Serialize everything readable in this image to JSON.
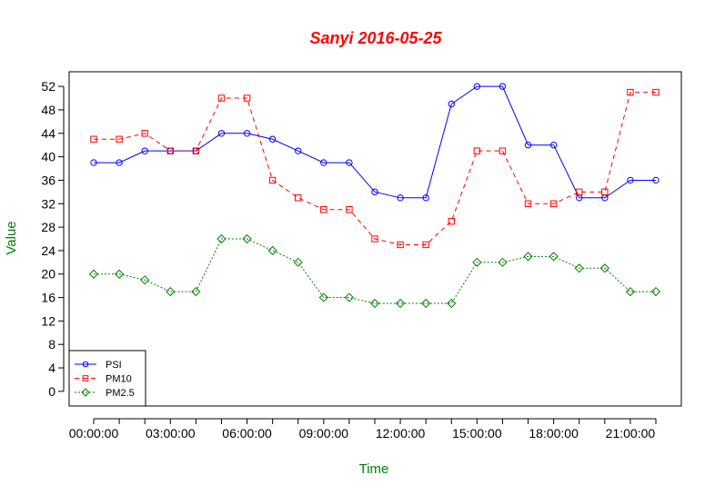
{
  "chart_data": {
    "type": "line",
    "title": "Sanyi 2016-05-25",
    "xlabel": "Time",
    "ylabel": "Value",
    "title_color": "#ff0000",
    "axis_label_color": "#008000",
    "ylim": [
      -2.5,
      54.5
    ],
    "yticks": [
      0,
      4,
      8,
      12,
      16,
      20,
      24,
      28,
      32,
      36,
      40,
      44,
      48,
      52
    ],
    "x_hours": [
      0,
      1,
      2,
      3,
      4,
      5,
      6,
      7,
      8,
      9,
      10,
      11,
      12,
      13,
      14,
      15,
      16,
      17,
      18,
      19,
      20,
      21,
      22
    ],
    "xticks": [
      {
        "hour": 0,
        "label": "00:00:00"
      },
      {
        "hour": 3,
        "label": "03:00:00"
      },
      {
        "hour": 6,
        "label": "06:00:00"
      },
      {
        "hour": 9,
        "label": "09:00:00"
      },
      {
        "hour": 12,
        "label": "12:00:00"
      },
      {
        "hour": 15,
        "label": "15:00:00"
      },
      {
        "hour": 18,
        "label": "18:00:00"
      },
      {
        "hour": 21,
        "label": "21:00:00"
      }
    ],
    "legend_position": "bottom-left",
    "series": [
      {
        "name": "PSI",
        "color": "#0000ff",
        "dash": "",
        "marker": "circle",
        "values": [
          39,
          39,
          41,
          41,
          41,
          44,
          44,
          43,
          41,
          39,
          39,
          34,
          33,
          33,
          49,
          52,
          52,
          42,
          42,
          33,
          33,
          36,
          36
        ]
      },
      {
        "name": "PM10",
        "color": "#ff0000",
        "dash": "5,4",
        "marker": "square",
        "values": [
          43,
          43,
          44,
          41,
          41,
          50,
          50,
          36,
          33,
          31,
          31,
          26,
          25,
          25,
          29,
          41,
          41,
          32,
          32,
          34,
          34,
          51,
          51
        ]
      },
      {
        "name": "PM2.5",
        "color": "#008000",
        "dash": "2,2",
        "marker": "diamond",
        "values": [
          20,
          20,
          19,
          17,
          17,
          26,
          26,
          24,
          22,
          16,
          16,
          15,
          15,
          15,
          15,
          22,
          22,
          23,
          23,
          21,
          21,
          17,
          17
        ]
      }
    ]
  }
}
